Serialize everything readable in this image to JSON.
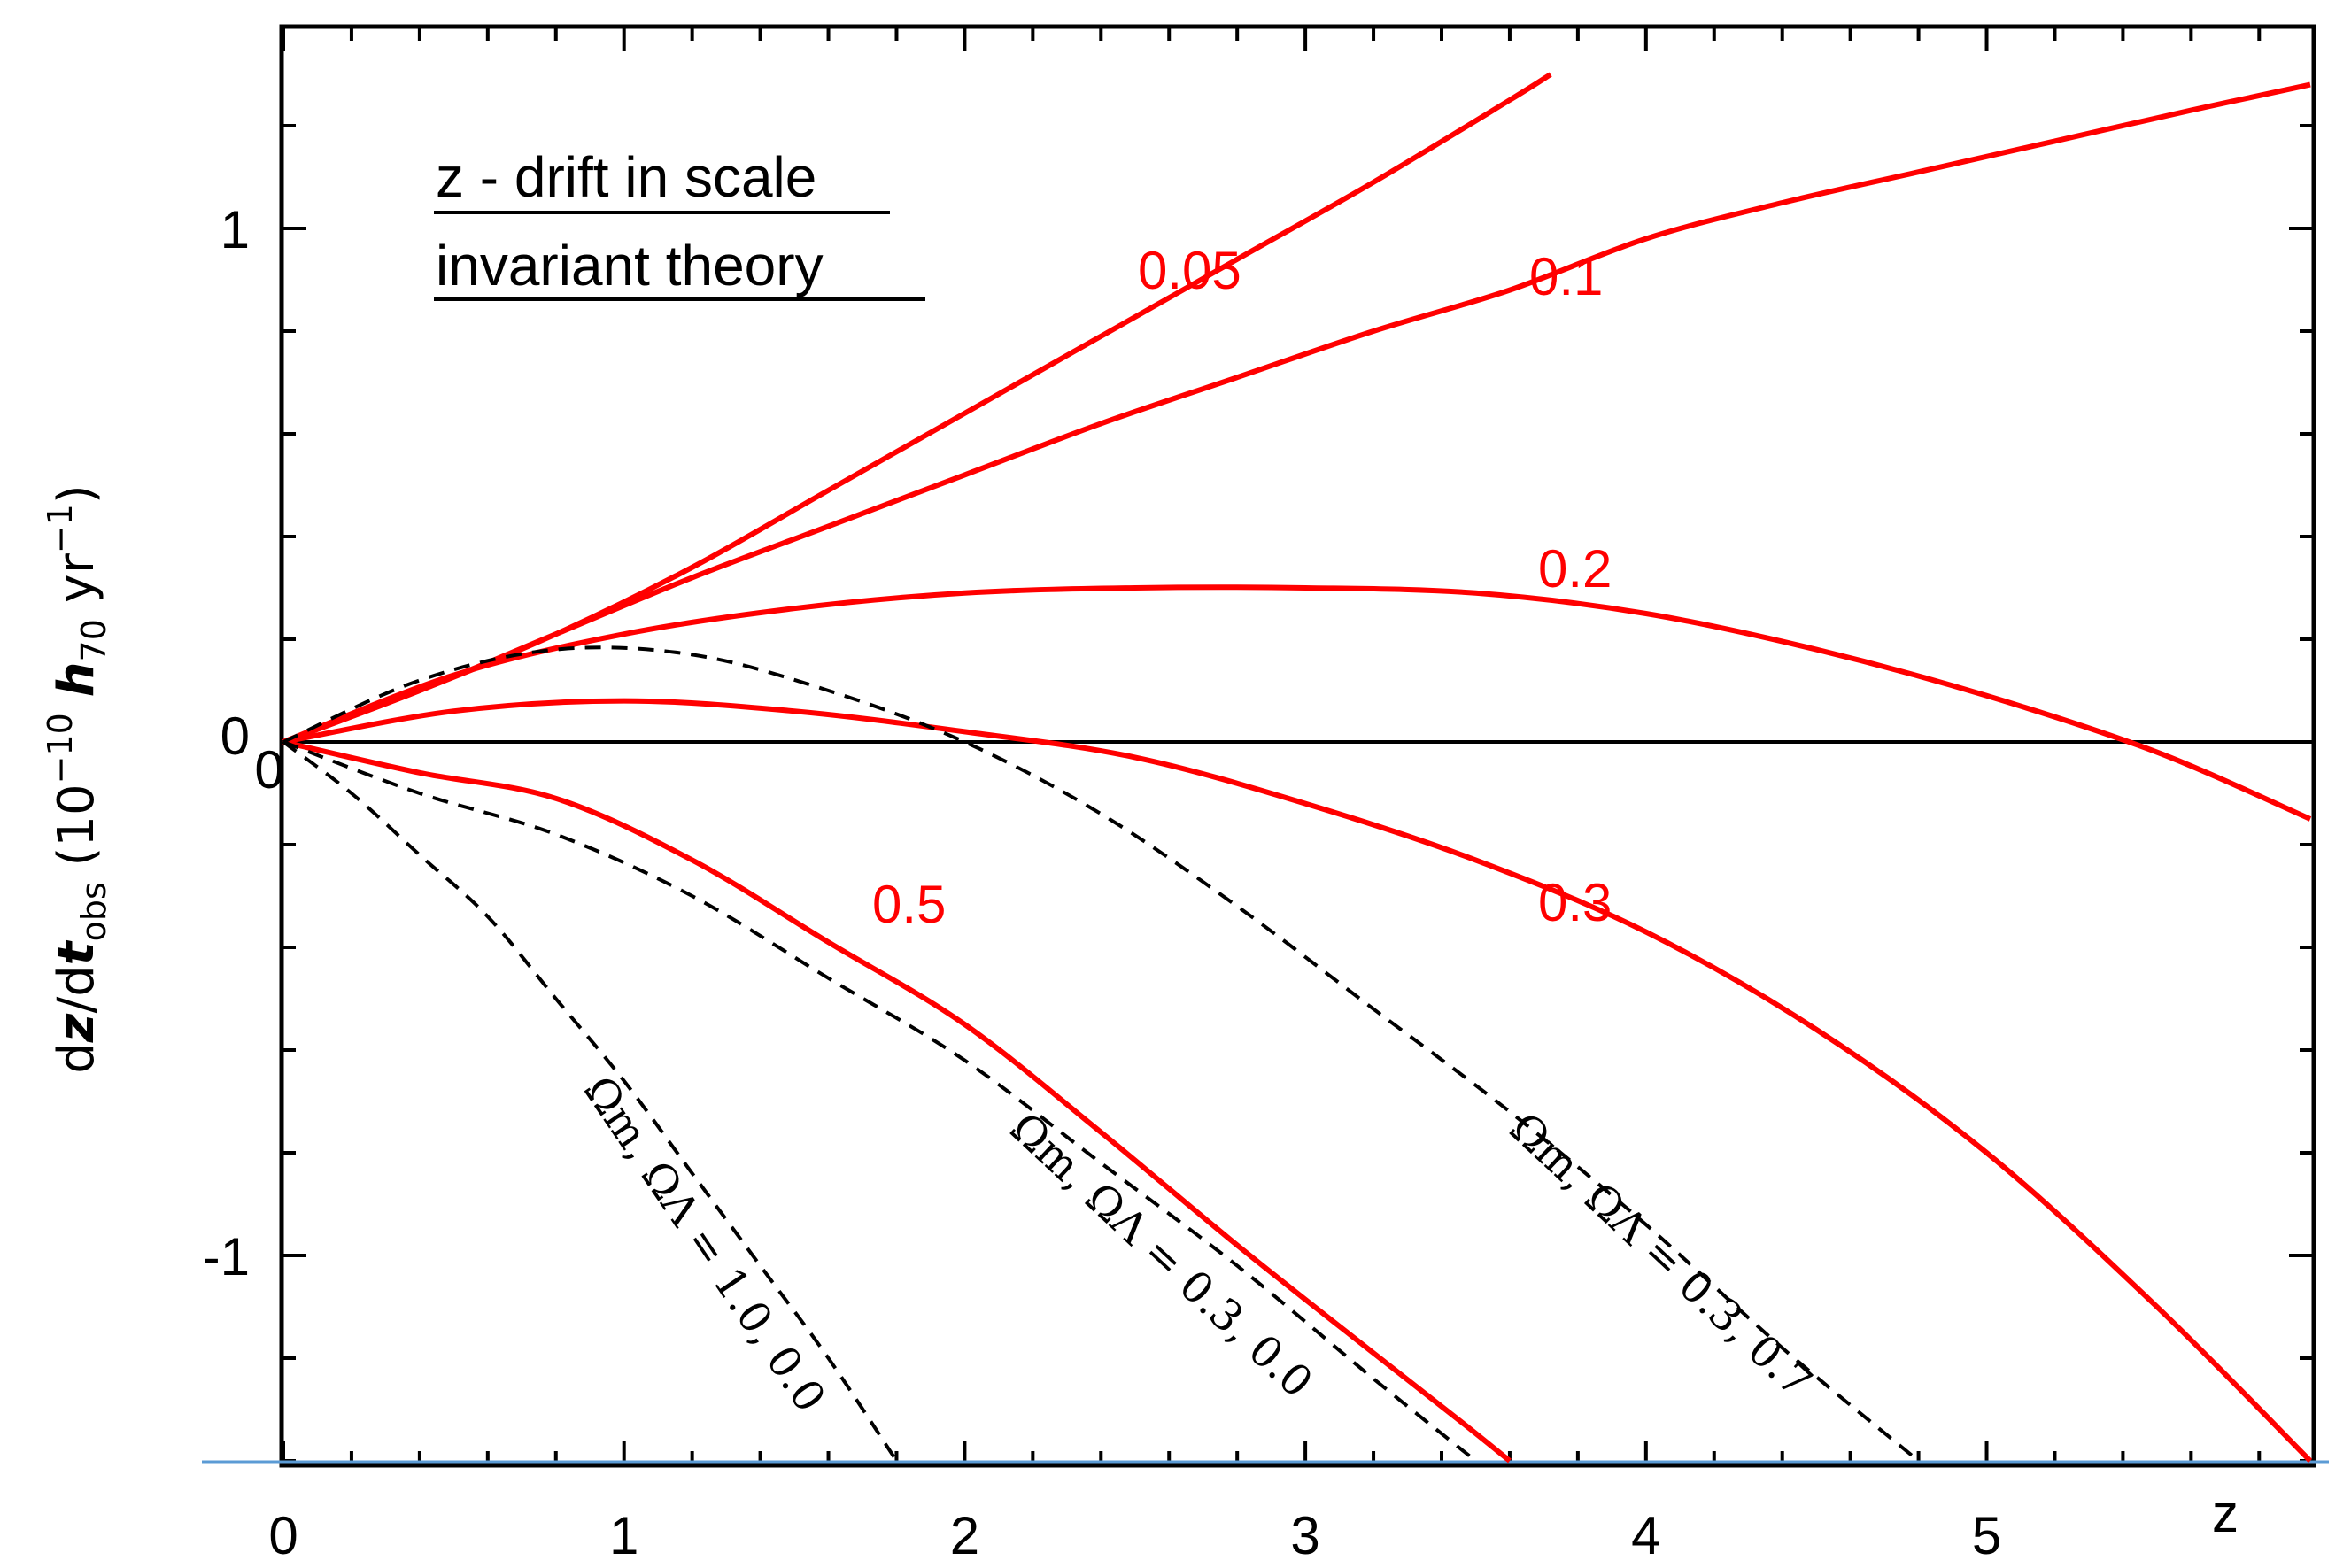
{
  "chart_data": {
    "type": "line",
    "title": [
      "z - drift in scale",
      "invariant theory"
    ],
    "xlabel": "z",
    "ylabel": "dz/dt_obs (10^-10 h_70 yr^-1)",
    "xlim": [
      0,
      5.95
    ],
    "ylim": [
      -1.4,
      1.4
    ],
    "x_ticks": [
      "0",
      "1",
      "2",
      "3",
      "4",
      "5"
    ],
    "y_ticks": [
      "1",
      "0",
      "-1"
    ],
    "extra_labels": {
      "y_zero_secondary": "0"
    },
    "colors": {
      "scale_invariant": "#ff0000",
      "standard": "#000000"
    },
    "series": [
      {
        "name": "0.05",
        "style": "solid",
        "x": [
          0,
          0.4,
          0.8,
          1.2,
          1.6,
          2.0,
          2.4,
          2.8,
          3.2,
          3.6,
          3.72
        ],
        "y": [
          0,
          0.1,
          0.21,
          0.34,
          0.49,
          0.64,
          0.79,
          0.94,
          1.09,
          1.25,
          1.3
        ]
      },
      {
        "name": "0.1",
        "style": "solid",
        "x": [
          0,
          0.4,
          0.8,
          1.2,
          1.6,
          2.0,
          2.4,
          2.8,
          3.2,
          3.6,
          4.0,
          4.4,
          4.8,
          5.2,
          5.6,
          5.95
        ],
        "y": [
          0,
          0.1,
          0.21,
          0.32,
          0.42,
          0.52,
          0.62,
          0.71,
          0.8,
          0.88,
          0.98,
          1.05,
          1.11,
          1.17,
          1.23,
          1.28
        ]
      },
      {
        "name": "0.2",
        "style": "solid",
        "x": [
          0,
          0.5,
          1.0,
          1.5,
          2.0,
          2.5,
          3.0,
          3.5,
          4.0,
          4.5,
          5.0,
          5.5,
          5.95
        ],
        "y": [
          0,
          0.13,
          0.21,
          0.26,
          0.29,
          0.3,
          0.3,
          0.29,
          0.25,
          0.18,
          0.09,
          -0.02,
          -0.15
        ]
      },
      {
        "name": "0.3",
        "style": "solid",
        "x": [
          0,
          0.5,
          1.0,
          1.5,
          2.0,
          2.5,
          3.0,
          3.5,
          4.0,
          4.5,
          5.0,
          5.5,
          5.95
        ],
        "y": [
          0,
          0.06,
          0.08,
          0.06,
          0.02,
          -0.03,
          -0.12,
          -0.23,
          -0.37,
          -0.56,
          -0.8,
          -1.1,
          -1.4
        ]
      },
      {
        "name": "0.5",
        "style": "solid",
        "x": [
          0,
          0.4,
          0.8,
          1.2,
          1.6,
          2.0,
          2.4,
          2.8,
          3.2,
          3.45,
          3.6
        ],
        "y": [
          0,
          -0.06,
          -0.11,
          -0.23,
          -0.39,
          -0.55,
          -0.76,
          -0.98,
          -1.19,
          -1.32,
          -1.4
        ]
      },
      {
        "name": "Ωm, ΩΛ = 1.0, 0.0",
        "style": "dashed",
        "x": [
          0,
          0.2,
          0.4,
          0.6,
          0.8,
          1.0,
          1.2,
          1.4,
          1.6,
          1.8
        ],
        "y": [
          0,
          -0.1,
          -0.22,
          -0.34,
          -0.5,
          -0.66,
          -0.84,
          -1.02,
          -1.2,
          -1.4
        ]
      },
      {
        "name": "Ωm, ΩΛ = 0.3, 0.0",
        "style": "dashed",
        "x": [
          0,
          0.4,
          0.8,
          1.2,
          1.6,
          2.0,
          2.4,
          2.8,
          3.2,
          3.5
        ],
        "y": [
          0,
          -0.1,
          -0.18,
          -0.3,
          -0.46,
          -0.62,
          -0.82,
          -1.02,
          -1.24,
          -1.4
        ]
      },
      {
        "name": "Ωm, ΩΛ = 0.3, 0.7",
        "style": "dashed",
        "x": [
          0,
          0.4,
          0.8,
          1.2,
          1.6,
          2.0,
          2.4,
          2.8,
          3.2,
          3.6,
          4.0,
          4.4,
          4.8
        ],
        "y": [
          0,
          0.12,
          0.18,
          0.17,
          0.1,
          0.0,
          -0.14,
          -0.32,
          -0.52,
          -0.72,
          -0.94,
          -1.18,
          -1.4
        ]
      }
    ],
    "series_labels": [
      "0.05",
      "0.1",
      "0.2",
      "0.3",
      "0.5"
    ],
    "dashed_labels": [
      {
        "text": "Ωm, ΩΛ = 1.0, 0.0"
      },
      {
        "text": "Ωm, ΩΛ = 0.3, 0.0"
      },
      {
        "text": "Ωm, ΩΛ = 0.3, 0.7"
      }
    ]
  }
}
